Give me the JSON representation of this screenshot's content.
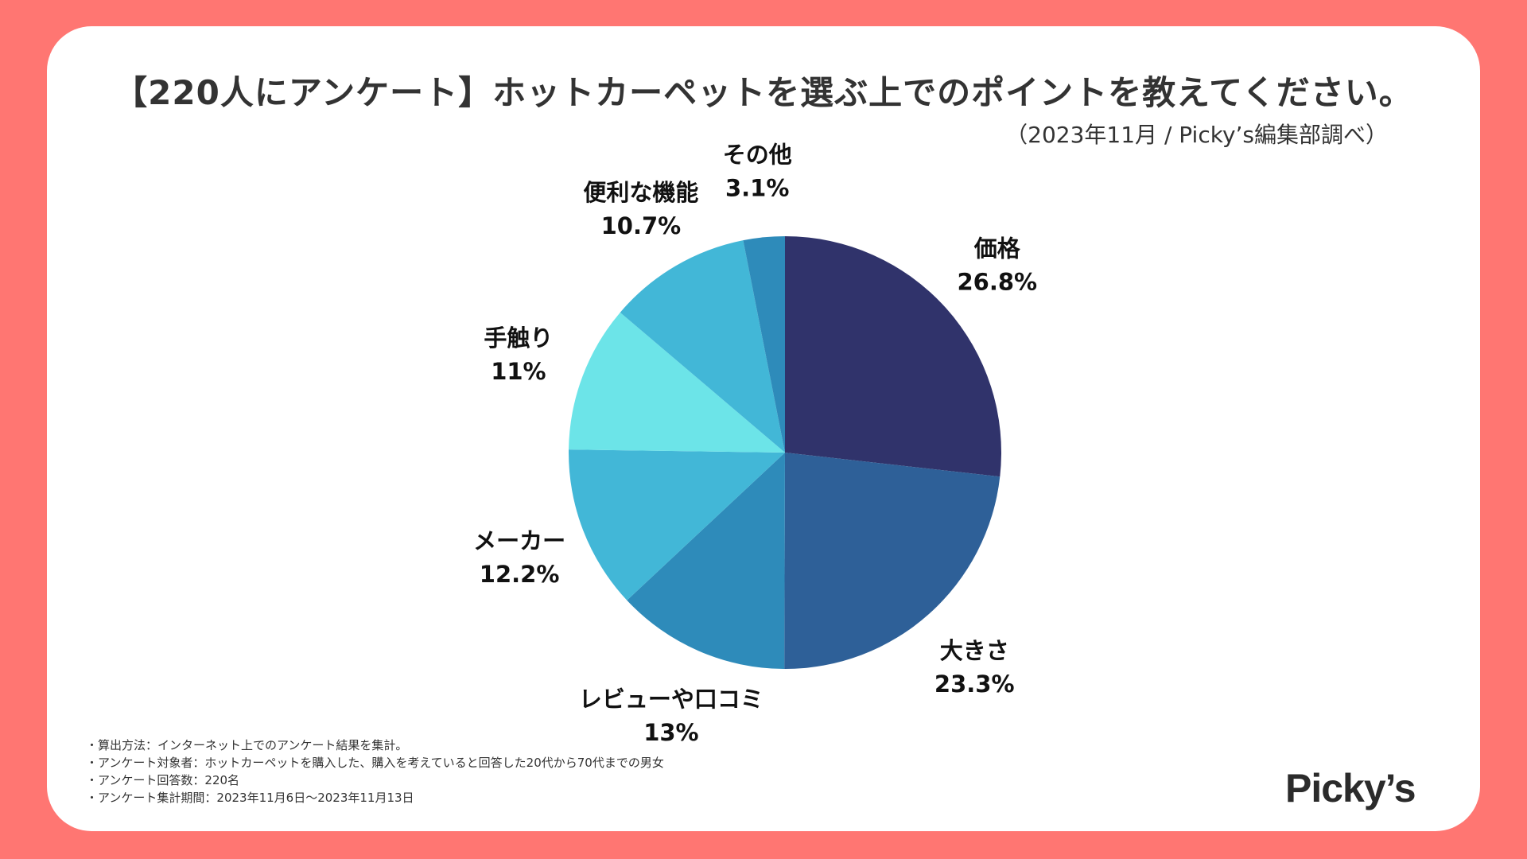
{
  "title": "【220人にアンケート】ホットカーペットを選ぶ上でのポイントを教えてください。",
  "subtitle": "（2023年11月 / Picky’s編集部調べ）",
  "notes": [
    "・算出方法：インターネット上でのアンケート結果を集計。",
    "・アンケート対象者：ホットカーペットを購入した、購入を考えていると回答した20代から70代までの男女",
    "・アンケート回答数：220名",
    "・アンケート集計期間：2023年11月6日〜2023年11月13日"
  ],
  "logo": "Picky’s",
  "colors": {
    "background": "#FF7672",
    "card": "#FFFFFF"
  },
  "chart_data": {
    "type": "pie",
    "title": "【220人にアンケート】ホットカーペットを選ぶ上でのポイントを教えてください。",
    "start_angle_deg": 0,
    "direction": "clockwise",
    "slices": [
      {
        "label": "価格",
        "value": 26.8,
        "display": "26.8%",
        "color": "#30336B"
      },
      {
        "label": "大きさ",
        "value": 23.3,
        "display": "23.3%",
        "color": "#2E6098"
      },
      {
        "label": "レビューや口コミ",
        "value": 13,
        "display": "13%",
        "color": "#2E8BBA"
      },
      {
        "label": "メーカー",
        "value": 12.2,
        "display": "12.2%",
        "color": "#42B7D7"
      },
      {
        "label": "手触り",
        "value": 11,
        "display": "11%",
        "color": "#6CE4E8"
      },
      {
        "label": "便利な機能",
        "value": 10.7,
        "display": "10.7%",
        "color": "#42B7D7"
      },
      {
        "label": "その他",
        "value": 3.1,
        "display": "3.1%",
        "color": "#2E8BBA"
      }
    ]
  }
}
